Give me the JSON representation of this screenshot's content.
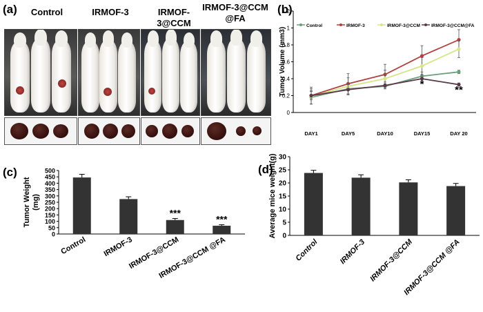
{
  "panel_a": {
    "label": "(a)",
    "groups": [
      {
        "name": "Control"
      },
      {
        "name": "IRMOF-3"
      },
      {
        "name": "IRMOF-3@CCM"
      },
      {
        "name": "IRMOF-3@CCM\n@FA"
      }
    ]
  },
  "panel_b": {
    "label": "(b)"
  },
  "panel_c": {
    "label": "(c)"
  },
  "panel_d": {
    "label": "(d)"
  },
  "chart_data": [
    {
      "id": "b",
      "type": "line",
      "ylabel": "Tumor Volume (mm3)",
      "categories": [
        "DAY1",
        "DAY5",
        "DAY10",
        "DAY15",
        "DAY 20"
      ],
      "ylim": [
        0,
        1.2
      ],
      "yticks": [
        0,
        0.2,
        0.4,
        0.6,
        0.8,
        1,
        1.2
      ],
      "legend_position": "top",
      "series": [
        {
          "name": "Control",
          "color": "#6b9e7a",
          "values": [
            0.18,
            0.28,
            0.31,
            0.43,
            0.48
          ],
          "errors": [
            0.08,
            0.06,
            0.03,
            0.05,
            0.02
          ]
        },
        {
          "name": "IRMOF-3",
          "color": "#b0413e",
          "values": [
            0.2,
            0.34,
            0.45,
            0.67,
            0.86
          ],
          "errors": [
            0.1,
            0.12,
            0.12,
            0.12,
            0.12
          ]
        },
        {
          "name": "IRMOF-3@CCM",
          "color": "#d5e68a",
          "values": [
            0.19,
            0.31,
            0.4,
            0.55,
            0.75
          ],
          "errors": [
            0.09,
            0.1,
            0.1,
            0.1,
            0.1
          ]
        },
        {
          "name": "IRMOF-3@CCM@FA",
          "color": "#5a3a4a",
          "values": [
            0.2,
            0.27,
            0.32,
            0.4,
            0.33
          ],
          "errors": [
            0.05,
            0.06,
            0.04,
            0.05,
            0.02
          ]
        }
      ],
      "annotations": [
        {
          "text": "*",
          "x": "DAY15",
          "y": 0.3
        },
        {
          "text": "**",
          "x": "DAY 20",
          "y": 0.23
        }
      ]
    },
    {
      "id": "c",
      "type": "bar",
      "ylabel": "Tumor Weight (mg)",
      "ylabel_lines": [
        "Tumor Weight",
        "(mg)"
      ],
      "categories": [
        "Control",
        "IRMOF-3",
        "IRMOF-3@CCM",
        "IRMOF-3@CCM @FA"
      ],
      "values": [
        445,
        275,
        110,
        65
      ],
      "errors": [
        25,
        18,
        12,
        8
      ],
      "ylim": [
        0,
        500
      ],
      "yticks": [
        0,
        50,
        100,
        150,
        200,
        250,
        300,
        350,
        400,
        450,
        500
      ],
      "annotations": [
        "",
        "",
        "***",
        "***"
      ],
      "bar_color": "#333333"
    },
    {
      "id": "d",
      "type": "bar",
      "ylabel": "Average mice weight(g)",
      "categories": [
        "Control",
        "IRMOF-3",
        "IRMOF-3@CCM",
        "IRMOF-3@CCM @FA"
      ],
      "values": [
        23.8,
        22.0,
        20.2,
        18.8
      ],
      "errors": [
        1.0,
        1.1,
        1.0,
        1.0
      ],
      "ylim": [
        0,
        30
      ],
      "yticks": [
        0,
        5,
        10,
        15,
        20,
        25,
        30
      ],
      "bar_color": "#333333"
    }
  ]
}
